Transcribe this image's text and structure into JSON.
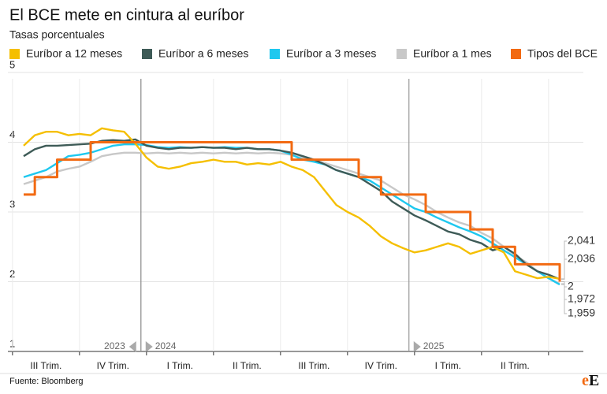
{
  "chart_data": {
    "type": "line",
    "title": "El BCE mete en cintura al euríbor",
    "subtitle": "Tasas porcentuales",
    "source": "Fuente: Bloomberg",
    "logo": [
      "e",
      "E"
    ],
    "categories": [
      null,
      null,
      "III Trim.",
      null,
      null,
      null,
      null,
      null,
      "IV Trim.",
      null,
      null,
      null,
      null,
      null,
      "I Trim.",
      null,
      null,
      null,
      null,
      null,
      "II Trim.",
      null,
      null,
      null,
      null,
      null,
      "III Trim.",
      null,
      null,
      null,
      null,
      null,
      "IV Trim.",
      null,
      null,
      null,
      null,
      null,
      "I Trim.",
      null,
      null,
      null,
      null,
      null,
      "II Trim.",
      null,
      null,
      null,
      null
    ],
    "years": [
      null,
      null,
      null,
      null,
      null,
      null,
      null,
      null,
      null,
      null,
      "2023",
      "2024",
      null,
      null,
      null,
      null,
      null,
      null,
      null,
      null,
      null,
      null,
      null,
      null,
      null,
      null,
      null,
      null,
      null,
      null,
      null,
      null,
      null,
      null,
      null,
      "2025",
      null,
      null,
      null,
      null,
      null,
      null,
      null,
      null,
      null,
      null,
      null,
      null,
      null
    ],
    "ylim": [
      1,
      5
    ],
    "yticks": [
      1,
      2,
      3,
      4,
      5
    ],
    "grid": true,
    "series": [
      {
        "name": "Euríbor a 12 meses",
        "color": "#f5bf00",
        "values": [
          3.95,
          4.1,
          4.15,
          4.15,
          4.1,
          4.12,
          4.1,
          4.2,
          4.17,
          4.15,
          3.98,
          3.78,
          3.65,
          3.62,
          3.65,
          3.7,
          3.72,
          3.75,
          3.72,
          3.72,
          3.68,
          3.7,
          3.68,
          3.72,
          3.65,
          3.6,
          3.5,
          3.3,
          3.1,
          3.0,
          2.92,
          2.8,
          2.65,
          2.55,
          2.48,
          2.42,
          2.45,
          2.5,
          2.55,
          2.5,
          2.4,
          2.45,
          2.5,
          2.42,
          2.15,
          2.1,
          2.05,
          2.07,
          2.041
        ],
        "value_labels": [
          null,
          null,
          null,
          null,
          null,
          null,
          null,
          null,
          null,
          null,
          null,
          null,
          null,
          null,
          null,
          null,
          null,
          null,
          null,
          null,
          null,
          null,
          null,
          null,
          null,
          null,
          null,
          null,
          null,
          null,
          null,
          null,
          null,
          null,
          null,
          null,
          null,
          null,
          null,
          null,
          null,
          null,
          null,
          null,
          null,
          null,
          null,
          null,
          "2,041"
        ]
      },
      {
        "name": "Euríbor a 6 meses",
        "color": "#3e5b57",
        "values": [
          3.8,
          3.9,
          3.95,
          3.95,
          3.96,
          3.97,
          3.98,
          4.02,
          4.03,
          4.02,
          4.04,
          3.95,
          3.92,
          3.9,
          3.92,
          3.92,
          3.93,
          3.92,
          3.92,
          3.9,
          3.92,
          3.9,
          3.9,
          3.88,
          3.85,
          3.8,
          3.75,
          3.68,
          3.6,
          3.55,
          3.5,
          3.4,
          3.3,
          3.15,
          3.05,
          2.95,
          2.88,
          2.8,
          2.72,
          2.68,
          2.6,
          2.55,
          2.45,
          2.5,
          2.4,
          2.25,
          2.15,
          2.1,
          2.036
        ],
        "value_labels": [
          null,
          null,
          null,
          null,
          null,
          null,
          null,
          null,
          null,
          null,
          null,
          null,
          null,
          null,
          null,
          null,
          null,
          null,
          null,
          null,
          null,
          null,
          null,
          null,
          null,
          null,
          null,
          null,
          null,
          null,
          null,
          null,
          null,
          null,
          null,
          null,
          null,
          null,
          null,
          null,
          null,
          null,
          null,
          null,
          null,
          null,
          null,
          null,
          "2,036"
        ]
      },
      {
        "name": "Euríbor a 3 meses",
        "color": "#1ec8ef",
        "values": [
          3.5,
          3.55,
          3.6,
          3.7,
          3.8,
          3.82,
          3.85,
          3.9,
          3.95,
          3.97,
          3.97,
          3.96,
          3.93,
          3.92,
          3.93,
          3.92,
          3.93,
          3.92,
          3.93,
          3.92,
          3.92,
          3.9,
          3.9,
          3.88,
          3.82,
          3.75,
          3.72,
          3.68,
          3.6,
          3.55,
          3.5,
          3.45,
          3.35,
          3.25,
          3.15,
          3.05,
          3.0,
          2.92,
          2.85,
          2.78,
          2.72,
          2.65,
          2.55,
          2.45,
          2.35,
          2.25,
          2.15,
          2.05,
          1.959
        ],
        "value_labels": [
          null,
          null,
          null,
          null,
          null,
          null,
          null,
          null,
          null,
          null,
          null,
          null,
          null,
          null,
          null,
          null,
          null,
          null,
          null,
          null,
          null,
          null,
          null,
          null,
          null,
          null,
          null,
          null,
          null,
          null,
          null,
          null,
          null,
          null,
          null,
          null,
          null,
          null,
          null,
          null,
          null,
          null,
          null,
          null,
          null,
          null,
          null,
          null,
          "1,959"
        ]
      },
      {
        "name": "Euríbor a 1 mes",
        "color": "#c8c8c8",
        "values": [
          3.4,
          3.45,
          3.5,
          3.58,
          3.62,
          3.65,
          3.72,
          3.8,
          3.83,
          3.85,
          3.85,
          3.84,
          3.85,
          3.84,
          3.85,
          3.84,
          3.85,
          3.84,
          3.85,
          3.84,
          3.85,
          3.84,
          3.85,
          3.84,
          3.82,
          3.78,
          3.74,
          3.7,
          3.65,
          3.6,
          3.55,
          3.5,
          3.45,
          3.35,
          3.25,
          3.18,
          3.1,
          3.0,
          2.92,
          2.85,
          2.8,
          2.7,
          2.62,
          2.5,
          2.38,
          2.28,
          2.15,
          2.05,
          1.972
        ],
        "value_labels": [
          null,
          null,
          null,
          null,
          null,
          null,
          null,
          null,
          null,
          null,
          null,
          null,
          null,
          null,
          null,
          null,
          null,
          null,
          null,
          null,
          null,
          null,
          null,
          null,
          null,
          null,
          null,
          null,
          null,
          null,
          null,
          null,
          null,
          null,
          null,
          null,
          null,
          null,
          null,
          null,
          null,
          null,
          null,
          null,
          null,
          null,
          null,
          null,
          "1,972"
        ]
      },
      {
        "name": "Tipos del BCE",
        "color": "#f26a12",
        "step": true,
        "values": [
          3.25,
          3.5,
          3.5,
          3.75,
          3.75,
          3.75,
          4,
          4,
          4,
          4,
          4,
          4,
          4,
          4,
          4,
          4,
          4,
          4,
          4,
          4,
          4,
          4,
          4,
          4,
          3.75,
          3.75,
          3.75,
          3.75,
          3.75,
          3.75,
          3.5,
          3.5,
          3.25,
          3.25,
          3.25,
          3.25,
          3,
          3,
          3,
          3,
          2.75,
          2.75,
          2.5,
          2.5,
          2.25,
          2.25,
          2.25,
          2.25,
          2
        ],
        "value_labels": [
          null,
          null,
          null,
          null,
          null,
          null,
          null,
          null,
          null,
          null,
          null,
          null,
          null,
          null,
          null,
          null,
          null,
          null,
          null,
          null,
          null,
          null,
          null,
          null,
          null,
          null,
          null,
          null,
          null,
          null,
          null,
          null,
          null,
          null,
          null,
          null,
          null,
          null,
          null,
          null,
          null,
          null,
          null,
          null,
          null,
          null,
          null,
          null,
          "2"
        ]
      }
    ]
  }
}
